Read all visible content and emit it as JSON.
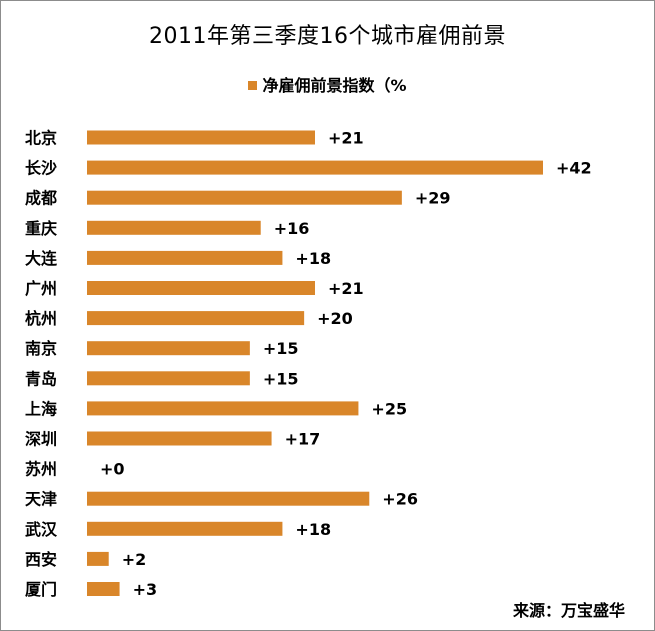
{
  "chart_data": {
    "type": "bar",
    "orientation": "horizontal",
    "title": "2011年第三季度16个城市雇佣前景",
    "categories": [
      "北京",
      "长沙",
      "成都",
      "重庆",
      "大连",
      "广州",
      "杭州",
      "南京",
      "青岛",
      "上海",
      "深圳",
      "苏州",
      "天津",
      "武汉",
      "西安",
      "厦门"
    ],
    "series": [
      {
        "name": "净雇佣前景指数（%",
        "values": [
          21,
          42,
          29,
          16,
          18,
          21,
          20,
          15,
          15,
          25,
          17,
          0,
          26,
          18,
          2,
          3
        ],
        "labels": [
          "+21",
          "+42",
          "+29",
          "+16",
          "+18",
          "+21",
          "+20",
          "+15",
          "+15",
          "+25",
          "+17",
          "+0",
          "+26",
          "+18",
          "+2",
          "+3"
        ],
        "color": "#D9862A"
      }
    ],
    "xlim": [
      0,
      42
    ],
    "grid": false,
    "legend_position": "top"
  },
  "source_text": "来源：万宝盛华"
}
